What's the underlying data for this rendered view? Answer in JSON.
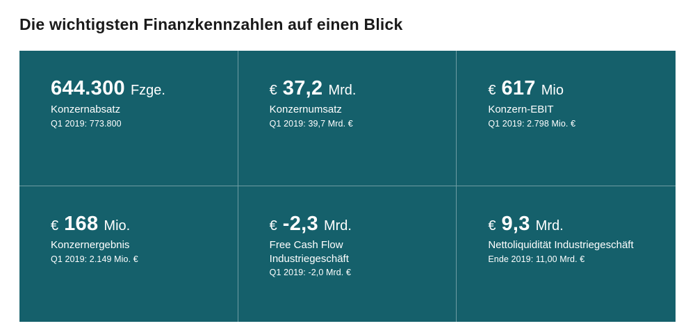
{
  "page": {
    "title": "Die wichtigsten Finanzkennzahlen auf einen Blick",
    "tile_color": "#15606B",
    "text_color": "#FFFFFF",
    "title_color": "#1A1A1A"
  },
  "kpis": [
    {
      "prefix": "",
      "value": "644.300",
      "unit": "Fzge.",
      "label": "Konzernabsatz",
      "comparison": "Q1 2019: 773.800"
    },
    {
      "prefix": "€",
      "value": "37,2",
      "unit": "Mrd.",
      "label": "Konzernumsatz",
      "comparison": "Q1 2019: 39,7 Mrd. €"
    },
    {
      "prefix": "€",
      "value": "617",
      "unit": "Mio",
      "label": "Konzern-EBIT",
      "comparison": "Q1 2019: 2.798 Mio. €"
    },
    {
      "prefix": "€",
      "value": "168",
      "unit": "Mio.",
      "label": "Konzernergebnis",
      "comparison": "Q1 2019: 2.149 Mio. €"
    },
    {
      "prefix": "€",
      "value": "-2,3",
      "unit": "Mrd.",
      "label": "Free Cash Flow\nIndustriegeschäft",
      "comparison": "Q1 2019: -2,0 Mrd. €"
    },
    {
      "prefix": "€",
      "value": "9,3",
      "unit": "Mrd.",
      "label": "Nettoliquidität Industriegeschäft",
      "comparison": "Ende 2019: 11,00 Mrd. €"
    }
  ]
}
